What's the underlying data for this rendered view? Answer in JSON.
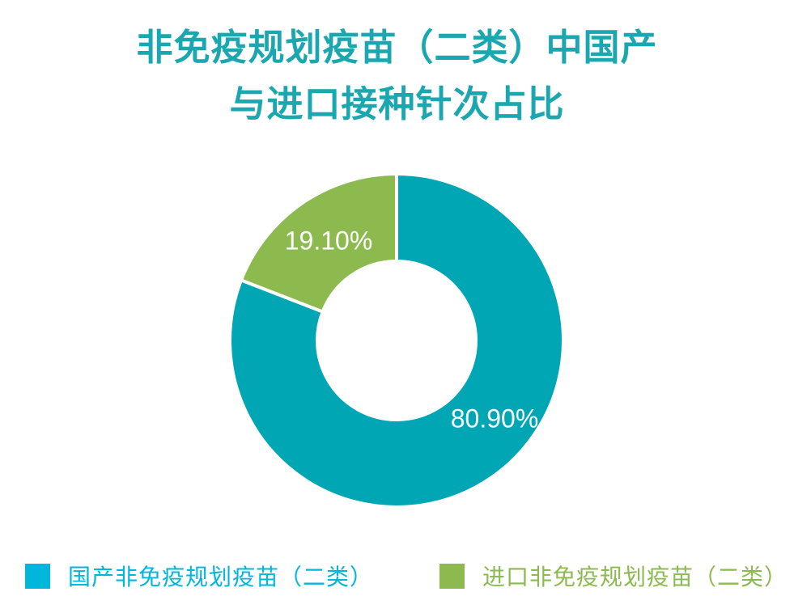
{
  "title": {
    "line1": "非免疫规划疫苗（二类）中国产",
    "line2": "与进口接种针次占比",
    "color": "#1AA7B0"
  },
  "chart_data": {
    "type": "pie",
    "subtype": "donut",
    "title": "非免疫规划疫苗（二类）中国产与进口接种针次占比",
    "start_angle_deg": 0,
    "direction": "clockwise",
    "inner_radius_ratio": 0.49,
    "legend_position": "bottom",
    "series": [
      {
        "key": "domestic",
        "name": "国产非免疫规划疫苗（二类）",
        "value": 80.9,
        "label": "80.90%",
        "color": "#00A6B4"
      },
      {
        "key": "imported",
        "name": "进口非免疫规划疫苗（二类）",
        "value": 19.1,
        "label": "19.10%",
        "color": "#8CBA4F"
      }
    ],
    "label_color": "#FFFFFF",
    "separator_color": "#FFFFFF"
  },
  "legend": {
    "items": [
      {
        "key": "domestic",
        "label": "国产非免疫规划疫苗（二类）",
        "color": "#00B7DB"
      },
      {
        "key": "imported",
        "label": "进口非免疫规划疫苗（二类）",
        "color": "#8CBA4F"
      }
    ]
  },
  "colors": {
    "background": "#FFFFFF",
    "title_teal": "#1AA7B0",
    "slice_teal": "#00A6B4",
    "slice_green": "#8CBA4F",
    "legend_cyan": "#00B7DB",
    "legend_green": "#8CBA4F"
  }
}
